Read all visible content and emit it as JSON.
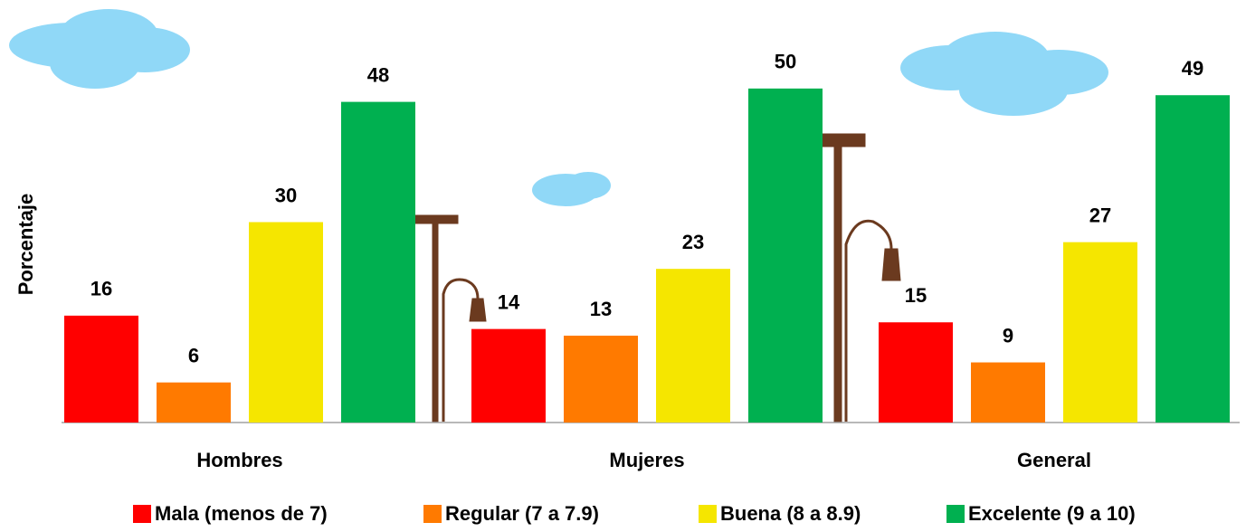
{
  "chart_data": {
    "type": "bar",
    "y_label": "Porcentaje",
    "categories": [
      "Hombres",
      "Mujeres",
      "General"
    ],
    "series": [
      {
        "name": "Mala (menos de 7)",
        "color": "#ff0000",
        "values": [
          16,
          14,
          15
        ]
      },
      {
        "name": "Regular (7 a 7.9)",
        "color": "#ff7a00",
        "values": [
          6,
          13,
          9
        ]
      },
      {
        "name": "Buena (8 a 8.9)",
        "color": "#f5e600",
        "values": [
          30,
          23,
          27
        ]
      },
      {
        "name": "Excelente (9 a 10)",
        "color": "#00b050",
        "values": [
          48,
          50,
          49
        ]
      }
    ],
    "ylim": [
      0,
      60
    ],
    "legend": "bottom"
  }
}
